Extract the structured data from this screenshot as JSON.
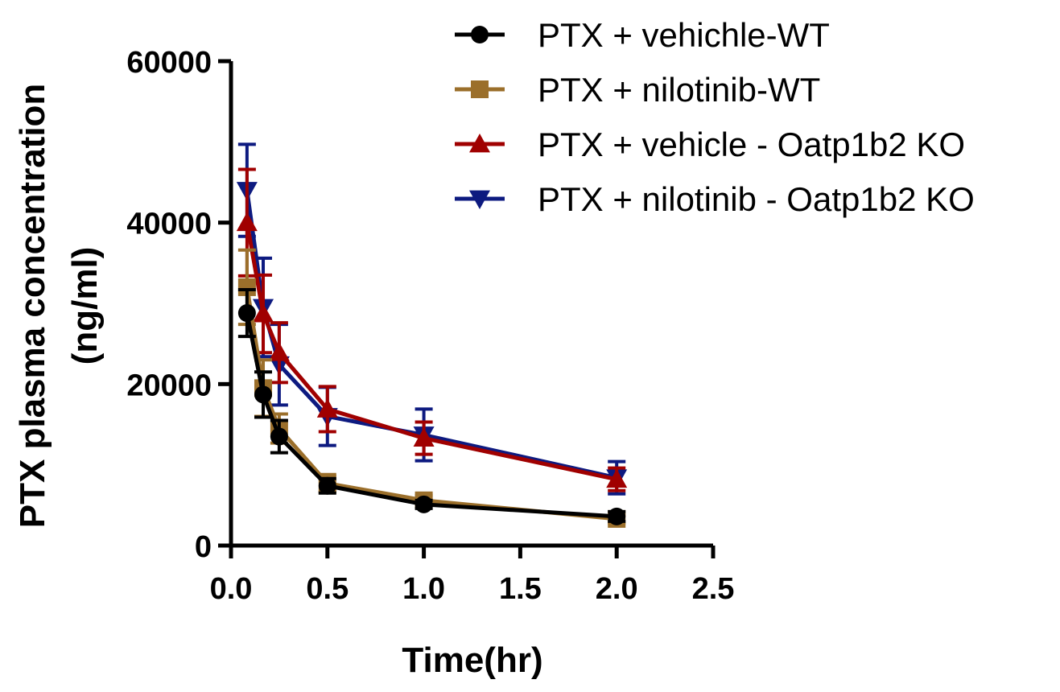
{
  "chart_data": {
    "type": "line",
    "title": "",
    "xlabel": "Time(hr)",
    "ylabel_line1": "PTX plasma concentration",
    "ylabel_line2": "(ng/ml)",
    "xlim": [
      0,
      2.5
    ],
    "ylim": [
      0,
      60000
    ],
    "x_ticks": [
      0.0,
      0.5,
      1.0,
      1.5,
      2.0,
      2.5
    ],
    "x_tick_labels": [
      "0.0",
      "0.5",
      "1.0",
      "1.5",
      "2.0",
      "2.5"
    ],
    "y_ticks": [
      0,
      20000,
      40000,
      60000
    ],
    "y_tick_labels": [
      "0",
      "20000",
      "40000",
      "60000"
    ],
    "grid": false,
    "legend_position": "top-right",
    "x": [
      0.083,
      0.167,
      0.25,
      0.5,
      1.0,
      2.0
    ],
    "series": [
      {
        "name": "PTX + vehichle-WT",
        "marker": "circle",
        "color": "#000000",
        "values": [
          28800,
          18700,
          13500,
          7400,
          5100,
          3600
        ],
        "errors": [
          2900,
          2800,
          2000,
          900,
          500,
          600
        ]
      },
      {
        "name": "PTX + nilotinib-WT",
        "marker": "square",
        "color": "#9B6F2B",
        "values": [
          32000,
          19500,
          14500,
          7700,
          5600,
          3300
        ],
        "errors": [
          4600,
          3500,
          1800,
          1100,
          600,
          500
        ]
      },
      {
        "name": "PTX + vehicle - Oatp1b2 KO",
        "marker": "triangle-up",
        "color": "#A00000",
        "values": [
          40000,
          28700,
          23900,
          16900,
          13300,
          8200
        ],
        "errors": [
          6600,
          4800,
          3700,
          2800,
          2000,
          1400
        ]
      },
      {
        "name": "PTX + nilotinib - Oatp1b2 KO",
        "marker": "triangle-down",
        "color": "#0D1A80",
        "values": [
          44000,
          29500,
          22400,
          16000,
          13700,
          8400
        ],
        "errors": [
          5700,
          6100,
          5000,
          3600,
          3200,
          2000
        ]
      }
    ]
  }
}
